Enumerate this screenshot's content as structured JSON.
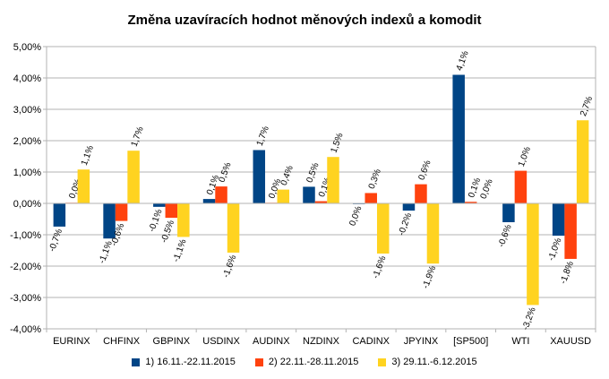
{
  "chart_data": {
    "type": "bar",
    "title": "Změna uzavíracích hodnot měnových indexů a komodit",
    "xlabel": "",
    "ylabel": "",
    "ylim": [
      -4,
      5
    ],
    "yticks": [
      -4,
      -3,
      -2,
      -1,
      0,
      1,
      2,
      3,
      4,
      5
    ],
    "ytick_labels": [
      "-4,00%",
      "-3,00%",
      "-2,00%",
      "-1,00%",
      "0,00%",
      "1,00%",
      "2,00%",
      "3,00%",
      "4,00%",
      "5,00%"
    ],
    "grid": true,
    "legend_position": "bottom",
    "categories": [
      "EURINX",
      "CHFINX",
      "GBPINX",
      "USDINX",
      "AUDINX",
      "NZDINX",
      "CADINX",
      "JPYINX",
      "[SP500]",
      "WTI",
      "XAUUSD"
    ],
    "series": [
      {
        "name": "1) 16.11.-22.11.2015",
        "color": "#004586",
        "values": [
          -0.74,
          -1.12,
          -0.11,
          0.14,
          1.7,
          0.53,
          -0.01,
          -0.23,
          4.1,
          -0.6,
          -1.03
        ],
        "labels": [
          "-0,7%",
          "-1,1%",
          "-0,1%",
          "0,1%",
          "1,7%",
          "0,5%",
          "0,0%",
          "-0,2%",
          "4,1%",
          "-0,6%",
          "-1,0%"
        ]
      },
      {
        "name": "2) 22.11.-28.11.2015",
        "color": "#ff420e",
        "values": [
          0.02,
          -0.56,
          -0.46,
          0.54,
          0.02,
          0.07,
          0.33,
          0.61,
          0.05,
          1.04,
          -1.77
        ],
        "labels": [
          "0,0%",
          "-0,6%",
          "-0,5%",
          "0,5%",
          "0,0%",
          "0,1%",
          "0,3%",
          "0,6%",
          "0,1%",
          "1,0%",
          "-1,8%"
        ]
      },
      {
        "name": "3) 29.11.-6.12.2015",
        "color": "#ffd320",
        "values": [
          1.08,
          1.68,
          -1.07,
          -1.57,
          0.44,
          1.48,
          -1.6,
          -1.92,
          0.01,
          -3.24,
          2.65
        ],
        "labels": [
          "1,1%",
          "1,7%",
          "-1,1%",
          "-1,6%",
          "0,4%",
          "1,5%",
          "-1,6%",
          "-1,9%",
          "0,0%",
          "-3,2%",
          "2,7%"
        ]
      }
    ]
  }
}
